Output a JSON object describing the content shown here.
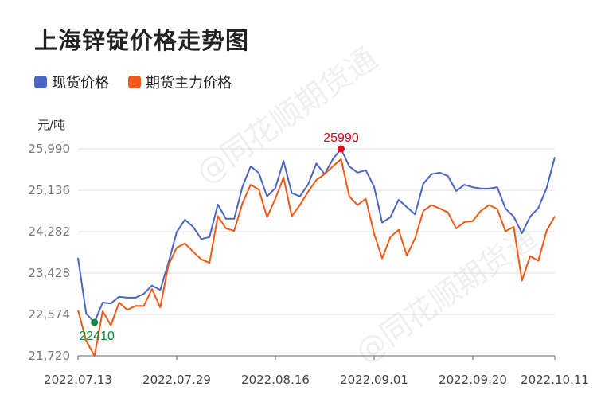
{
  "header": {
    "title": "上海锌锭价格走势图"
  },
  "legend": [
    {
      "label": "现货价格",
      "color": "#4a66c4"
    },
    {
      "label": "期货主力价格",
      "color": "#f05a14"
    }
  ],
  "axis": {
    "unit": "元/吨",
    "yticks": [
      "25,990",
      "25,136",
      "24,282",
      "23,428",
      "22,574",
      "21,720"
    ],
    "xticks": [
      "2022.07.13",
      "2022.07.29",
      "2022.08.16",
      "2022.09.01",
      "2022.09.20",
      "2022.10.11"
    ]
  },
  "annotations": {
    "max_label": "25990",
    "min_label": "22410",
    "max_color": "#e8001c",
    "min_color": "#0a8a3a"
  },
  "watermark": "@同花顺期货通",
  "chart_data": {
    "type": "line",
    "title": "上海锌锭价格走势图",
    "xlabel": "",
    "ylabel": "元/吨",
    "ylim": [
      21720,
      25990
    ],
    "yticks": [
      21720,
      22574,
      23428,
      24282,
      25136,
      25990
    ],
    "grid": true,
    "legend_position": "top-left",
    "x_tick_labels": [
      "2022.07.13",
      "2022.07.29",
      "2022.08.16",
      "2022.09.01",
      "2022.09.20",
      "2022.10.11"
    ],
    "x_tick_indices": [
      0,
      12,
      24,
      36,
      48,
      58
    ],
    "series": [
      {
        "name": "现货价格",
        "color": "#4a66c4",
        "values": [
          23740,
          22590,
          22410,
          22820,
          22800,
          22940,
          22920,
          22920,
          23000,
          23170,
          23080,
          23640,
          24270,
          24530,
          24380,
          24130,
          24170,
          24840,
          24550,
          24550,
          25210,
          25630,
          25490,
          25010,
          25180,
          25740,
          25080,
          25010,
          25260,
          25690,
          25470,
          25780,
          25990,
          25630,
          25500,
          25550,
          25220,
          24470,
          24580,
          24940,
          24790,
          24640,
          25270,
          25470,
          25500,
          25430,
          25120,
          25250,
          25200,
          25170,
          25170,
          25200,
          24760,
          24590,
          24250,
          24590,
          24770,
          25180,
          25820
        ]
      },
      {
        "name": "期货主力价格",
        "color": "#f05a14",
        "values": [
          22660,
          22030,
          21720,
          22640,
          22350,
          22820,
          22670,
          22750,
          22750,
          23100,
          22720,
          23590,
          23950,
          24040,
          23870,
          23710,
          23640,
          24600,
          24350,
          24300,
          24870,
          25250,
          25150,
          24580,
          24960,
          25400,
          24600,
          24830,
          25110,
          25350,
          25470,
          25630,
          25780,
          25010,
          24830,
          24960,
          24250,
          23730,
          24170,
          24320,
          23790,
          24140,
          24710,
          24830,
          24760,
          24680,
          24350,
          24480,
          24500,
          24710,
          24830,
          24750,
          24290,
          24380,
          23270,
          23780,
          23680,
          24300,
          24600
        ]
      }
    ],
    "annotations": [
      {
        "text": "25990",
        "series": "现货价格",
        "index": 32,
        "type": "max"
      },
      {
        "text": "22410",
        "series": "现货价格",
        "index": 2,
        "type": "min"
      }
    ]
  }
}
